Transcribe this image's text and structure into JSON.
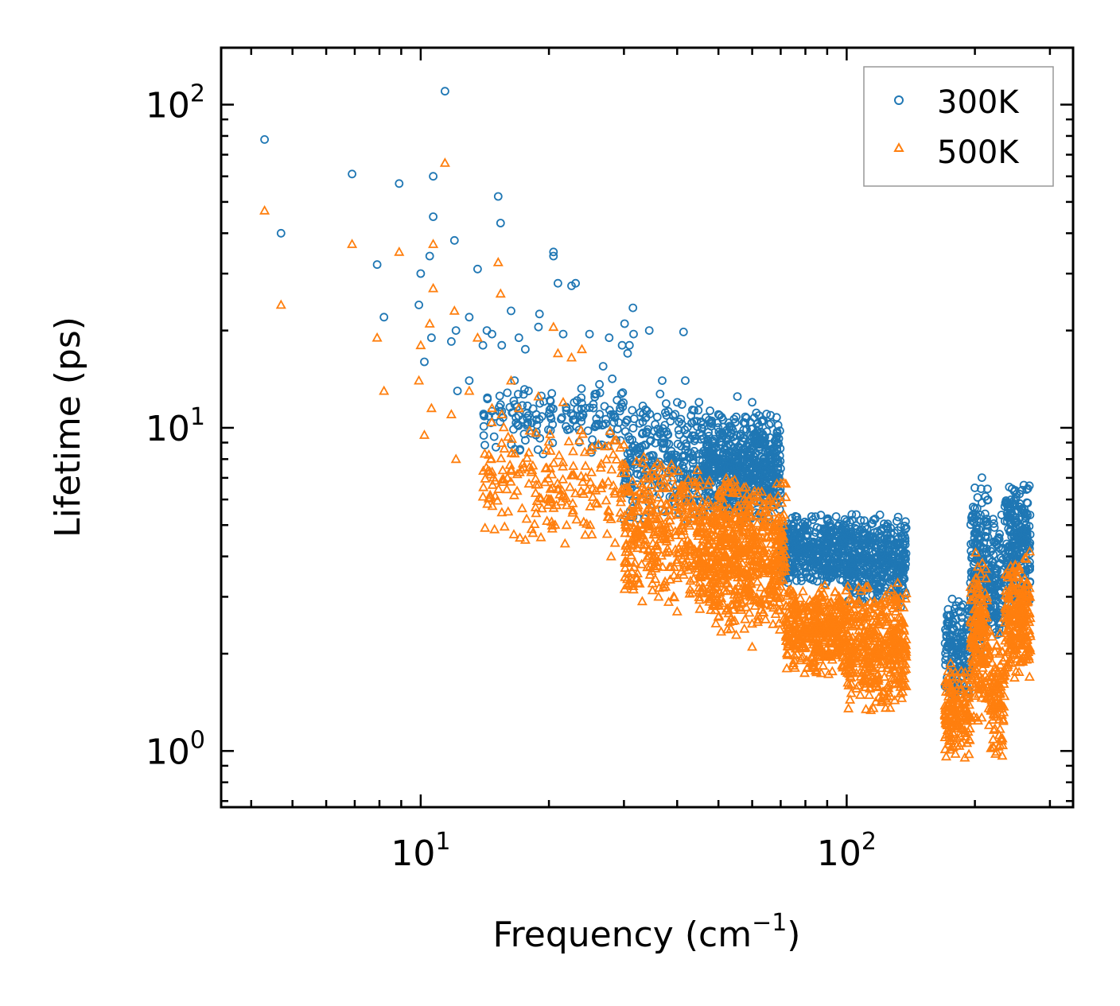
{
  "chart_data": {
    "type": "scatter",
    "title": "",
    "xlabel": "Frequency",
    "xlabel_unit_base": "cm",
    "xlabel_unit_exp": "−1",
    "ylabel": "Lifetime (ps)",
    "xscale": "log",
    "yscale": "log",
    "xlim": [
      3.4,
      340
    ],
    "ylim": [
      0.67,
      150
    ],
    "legend_position": "top-right",
    "x_major_ticks": [
      {
        "value": 10,
        "base": "10",
        "exp": "1"
      },
      {
        "value": 100,
        "base": "10",
        "exp": "2"
      }
    ],
    "y_major_ticks": [
      {
        "value": 1,
        "base": "10",
        "exp": "0"
      },
      {
        "value": 10,
        "base": "10",
        "exp": "1"
      },
      {
        "value": 100,
        "base": "10",
        "exp": "2"
      }
    ],
    "series": [
      {
        "name": "300K",
        "marker": "circle",
        "color": "#1f77b4",
        "points": [
          [
            4.3,
            78
          ],
          [
            4.7,
            40
          ],
          [
            6.9,
            61
          ],
          [
            7.9,
            32
          ],
          [
            8.2,
            22
          ],
          [
            8.9,
            57
          ],
          [
            9.9,
            24
          ],
          [
            10.0,
            30
          ],
          [
            10.2,
            16
          ],
          [
            10.5,
            34
          ],
          [
            10.6,
            19
          ],
          [
            10.7,
            60
          ],
          [
            10.7,
            45
          ],
          [
            11.4,
            110
          ],
          [
            11.8,
            18.5
          ],
          [
            12.0,
            38
          ],
          [
            12.1,
            20
          ],
          [
            12.2,
            13
          ],
          [
            13.0,
            22
          ],
          [
            13.0,
            14
          ],
          [
            13.6,
            31
          ],
          [
            14.0,
            18
          ],
          [
            14.3,
            20
          ],
          [
            14.7,
            19.5
          ],
          [
            15.2,
            52
          ],
          [
            15.4,
            43
          ],
          [
            15.5,
            18
          ],
          [
            16.3,
            23
          ],
          [
            16.6,
            14
          ],
          [
            17.0,
            19
          ],
          [
            17.6,
            17.5
          ],
          [
            18.9,
            20.5
          ],
          [
            19.0,
            22.5
          ],
          [
            20.5,
            34
          ],
          [
            20.5,
            35
          ],
          [
            21.0,
            28
          ],
          [
            21.6,
            19.5
          ],
          [
            22.6,
            27.5
          ],
          [
            23.1,
            28
          ],
          [
            24.9,
            19.5
          ],
          [
            26.8,
            15.5
          ],
          [
            27.7,
            19
          ],
          [
            29.7,
            18
          ],
          [
            30.1,
            21
          ],
          [
            30.6,
            17
          ],
          [
            30.9,
            18
          ],
          [
            31.5,
            23.5
          ],
          [
            31.6,
            19.5
          ],
          [
            34.4,
            20
          ],
          [
            36.9,
            14
          ],
          [
            41.4,
            19.8
          ],
          [
            41.8,
            14
          ],
          [
            45.0,
            12
          ],
          [
            50.0,
            11
          ],
          [
            55.4,
            12.5
          ],
          [
            60.0,
            12
          ]
        ],
        "bands": [
          {
            "xmin": 14.0,
            "xmax": 30.0,
            "ymin": 8.0,
            "ymax": 14.5,
            "count": 160
          },
          {
            "xmin": 30.0,
            "xmax": 45.0,
            "ymin": 5.0,
            "ymax": 13.0,
            "count": 260
          },
          {
            "xmin": 45.0,
            "xmax": 70.0,
            "ymin": 5.0,
            "ymax": 11.5,
            "count": 650
          },
          {
            "xmin": 70.0,
            "xmax": 100.0,
            "ymin": 3.2,
            "ymax": 5.5,
            "count": 420
          },
          {
            "xmin": 100.0,
            "xmax": 138.0,
            "ymin": 2.7,
            "ymax": 5.6,
            "count": 420
          },
          {
            "xmin": 170.0,
            "xmax": 195.0,
            "ymin": 1.4,
            "ymax": 3.0,
            "count": 160
          },
          {
            "xmin": 195.0,
            "xmax": 215.0,
            "ymin": 2.0,
            "ymax": 7.3,
            "count": 170
          },
          {
            "xmin": 215.0,
            "xmax": 235.0,
            "ymin": 2.0,
            "ymax": 5.5,
            "count": 110
          },
          {
            "xmin": 235.0,
            "xmax": 270.0,
            "ymin": 2.5,
            "ymax": 7.2,
            "count": 230
          }
        ]
      },
      {
        "name": "500K",
        "marker": "triangle",
        "color": "#ff7f0e",
        "points": [
          [
            4.3,
            47
          ],
          [
            4.7,
            24
          ],
          [
            6.9,
            37
          ],
          [
            7.9,
            19
          ],
          [
            8.2,
            13
          ],
          [
            8.9,
            35
          ],
          [
            9.9,
            14
          ],
          [
            10.0,
            18
          ],
          [
            10.2,
            9.5
          ],
          [
            10.5,
            21
          ],
          [
            10.6,
            11.5
          ],
          [
            10.7,
            37
          ],
          [
            10.7,
            27
          ],
          [
            11.4,
            66
          ],
          [
            11.8,
            11
          ],
          [
            12.0,
            23
          ],
          [
            12.1,
            8
          ],
          [
            13.0,
            13
          ],
          [
            13.6,
            19
          ],
          [
            14.7,
            11.5
          ],
          [
            15.2,
            32.5
          ],
          [
            15.4,
            26
          ],
          [
            15.5,
            11
          ],
          [
            16.3,
            14
          ],
          [
            17.0,
            11.5
          ],
          [
            18.9,
            12.5
          ],
          [
            20.5,
            20.5
          ],
          [
            21.0,
            17
          ],
          [
            21.6,
            12
          ],
          [
            22.6,
            16.5
          ],
          [
            23.9,
            17.5
          ],
          [
            17.6,
            4.5
          ],
          [
            20.0,
            6.0
          ],
          [
            22.0,
            5.0
          ],
          [
            25.0,
            5.0
          ],
          [
            28.0,
            4.0
          ],
          [
            35.0,
            3.3
          ],
          [
            40.0,
            2.7
          ],
          [
            50.0,
            2.6
          ],
          [
            60.0,
            2.1
          ]
        ],
        "bands": [
          {
            "xmin": 14.0,
            "xmax": 30.0,
            "ymin": 4.3,
            "ymax": 10.5,
            "count": 200
          },
          {
            "xmin": 30.0,
            "xmax": 45.0,
            "ymin": 2.7,
            "ymax": 8.5,
            "count": 330
          },
          {
            "xmin": 45.0,
            "xmax": 72.0,
            "ymin": 2.2,
            "ymax": 7.5,
            "count": 700
          },
          {
            "xmin": 72.0,
            "xmax": 100.0,
            "ymin": 1.7,
            "ymax": 3.3,
            "count": 420
          },
          {
            "xmin": 100.0,
            "xmax": 138.0,
            "ymin": 1.3,
            "ymax": 3.4,
            "count": 420
          },
          {
            "xmin": 170.0,
            "xmax": 195.0,
            "ymin": 0.9,
            "ymax": 1.9,
            "count": 160
          },
          {
            "xmin": 195.0,
            "xmax": 215.0,
            "ymin": 1.1,
            "ymax": 4.5,
            "count": 170
          },
          {
            "xmin": 215.0,
            "xmax": 235.0,
            "ymin": 0.9,
            "ymax": 2.6,
            "count": 110
          },
          {
            "xmin": 235.0,
            "xmax": 270.0,
            "ymin": 1.6,
            "ymax": 4.2,
            "count": 230
          }
        ]
      }
    ]
  }
}
